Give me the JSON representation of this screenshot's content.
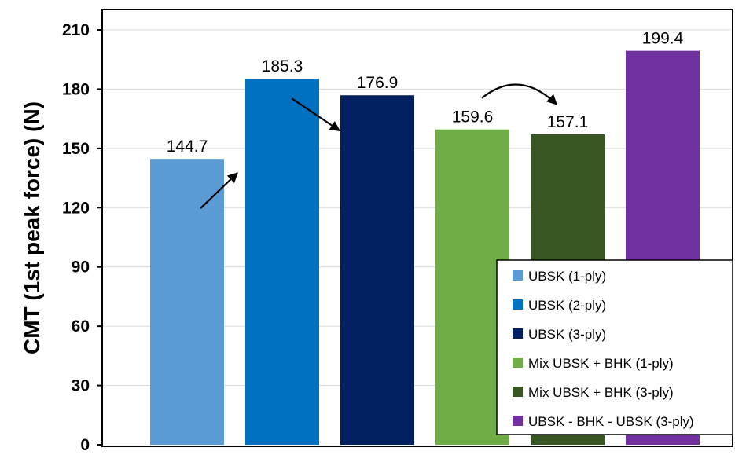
{
  "chart_data": {
    "type": "bar",
    "title": "",
    "xlabel": "",
    "ylabel": "CMT (1st peak force) (N)",
    "ylim": [
      0,
      210
    ],
    "yticks": [
      0,
      30,
      60,
      90,
      120,
      150,
      180,
      210
    ],
    "grid": true,
    "legend_position": "bottom-right",
    "categories": [
      "UBSK (1-ply)",
      "UBSK (2-ply)",
      "UBSK (3-ply)",
      "Mix UBSK + BHK (1-ply)",
      "Mix UBSK + BHK (3-ply)",
      "UBSK - BHK - UBSK (3-ply)"
    ],
    "values": [
      144.7,
      185.3,
      176.9,
      159.6,
      157.1,
      199.4
    ],
    "data_labels": [
      "144.7",
      "185.3",
      "176.9",
      "159.6",
      "157.1",
      "199.4"
    ],
    "colors": [
      "#5b9bd5",
      "#0070c0",
      "#002060",
      "#70ad47",
      "#375623",
      "#7030a0"
    ],
    "annotations": [
      {
        "type": "straight-arrow",
        "from_category": 0,
        "to_category": 1
      },
      {
        "type": "straight-arrow",
        "from_category": 1,
        "to_category": 2
      },
      {
        "type": "curved-arrow",
        "from_category": 3,
        "to_category": 4
      }
    ]
  }
}
